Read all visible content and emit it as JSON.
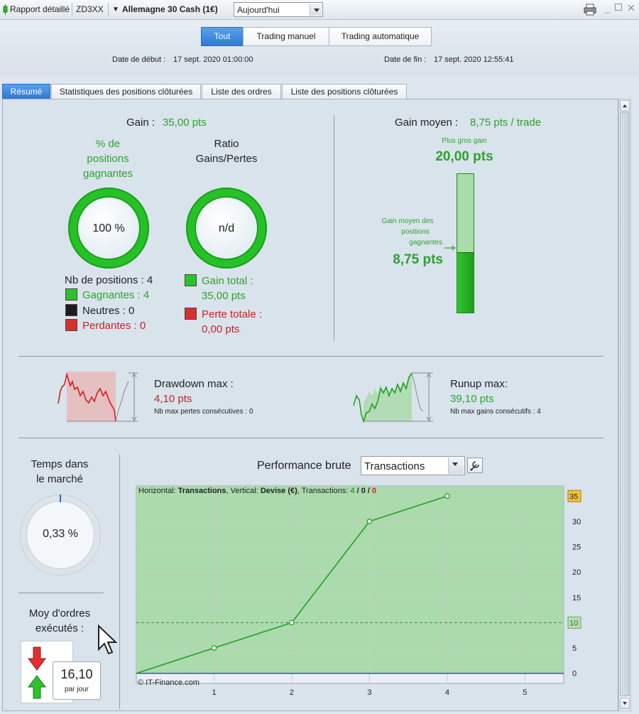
{
  "toolbar": {
    "report_label": "Rapport détaillé",
    "account": "ZD3XX",
    "instrument": "Allemagne 30 Cash (1€)",
    "period": "Aujourd'hui",
    "print_icon": "printer-icon",
    "minimize_icon": "minimize-icon",
    "restore_icon": "restore-icon",
    "close_icon": "close-icon"
  },
  "filters": {
    "buttons": [
      "Tout",
      "Trading manuel",
      "Trading automatique"
    ],
    "active": "Tout",
    "start_label": "Date de début :",
    "start_value": "17 sept. 2020 01:00:00",
    "end_label": "Date de fin :",
    "end_value": "17 sept. 2020 12:55:41"
  },
  "tabs": [
    "Résumé",
    "Statistiques des positions clôturées",
    "Liste des ordres",
    "Liste des positions clôturées"
  ],
  "summary": {
    "gain_label": "Gain :",
    "gain_value": "35,00 pts",
    "win_pct_title_1": "% de",
    "win_pct_title_2": "positions",
    "win_pct_title_3": "gagnantes",
    "win_pct_value": "100 %",
    "ratio_title_1": "Ratio",
    "ratio_title_2": "Gains/Pertes",
    "ratio_value": "n/d",
    "nb_positions": "Nb de positions : 4",
    "winners": "Gagnantes : 4",
    "neutral": "Neutres : 0",
    "losers": "Perdantes : 0",
    "total_gain_label": "Gain total :",
    "total_gain_value": "35,00 pts",
    "total_loss_label": "Perte totale :",
    "total_loss_value": "0,00 pts",
    "avg_gain_label": "Gain moyen :",
    "avg_gain_value": "8,75 pts / trade",
    "biggest_gain_label": "Plus gros gain",
    "biggest_gain_value": "20,00 pts",
    "avg_win_label_1": "Gain moyen des",
    "avg_win_label_2": "positions",
    "avg_win_label_3": "gagnantes",
    "avg_win_value": "8,75 pts",
    "avg_win_fraction": 0.4375
  },
  "drawdown": {
    "label": "Drawdown max :",
    "value": "4,10 pts",
    "sub": "Nb max pertes consécutives : 0"
  },
  "runup": {
    "label": "Runup max:",
    "value": "39,10 pts",
    "sub": "Nb max gains consécutifs : 4"
  },
  "market": {
    "title_1": "Temps dans",
    "title_2": "le marché",
    "value": "0,33 %",
    "fraction": 0.0033
  },
  "orders": {
    "title_1": "Moy d'ordres",
    "title_2": "exécutés :",
    "value": "16,10",
    "unit": "par jour"
  },
  "performance": {
    "title": "Performance brute",
    "select_value": "Transactions",
    "wrench_icon": "wrench-icon",
    "info_prefix": "Horizontal:",
    "info_h": "Transactions",
    "info_mid": ", Vertical:",
    "info_v": "Devise (€)",
    "info_tr": ", Transactions:",
    "info_counts_win": "4",
    "info_counts_sep1": " / ",
    "info_counts_neutral": "0",
    "info_counts_sep2": " / ",
    "info_counts_loss": "0",
    "copyright": "© IT-Finance.com"
  },
  "chart_data": {
    "type": "line",
    "x": [
      0,
      1,
      2,
      3,
      4
    ],
    "y": [
      0,
      5,
      10,
      30,
      35
    ],
    "xlim": [
      0,
      5.5
    ],
    "ylim": [
      -2,
      37
    ],
    "xticks": [
      "1",
      "2",
      "3",
      "4",
      "5"
    ],
    "yticks": [
      "0",
      "5",
      "10",
      "15",
      "20",
      "25",
      "30",
      "35"
    ],
    "last_value_badge": "35",
    "avg_line_value": 10,
    "avg_line_badge": "10",
    "colors": {
      "line": "#22a022",
      "fill": "#a8d8a8",
      "zero": "#3a4fcf",
      "badge_last": "#f4c430"
    }
  }
}
